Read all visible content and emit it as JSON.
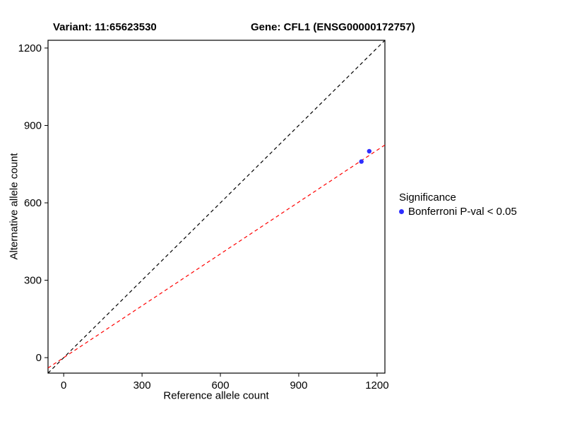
{
  "titles": {
    "variant": "Variant: 11:65623530",
    "gene": "Gene: CFL1 (ENSG00000172757)"
  },
  "chart_data": {
    "type": "scatter",
    "xlabel": "Reference allele count",
    "ylabel": "Alternative allele count",
    "xlim": [
      -60,
      1230
    ],
    "ylim": [
      -60,
      1230
    ],
    "xticks": [
      0,
      300,
      600,
      900,
      1200
    ],
    "yticks": [
      0,
      300,
      600,
      900,
      1200
    ],
    "grid": false,
    "panel_border_color": "#000000",
    "point_color": "#2e2eff",
    "points": [
      {
        "x": 1140,
        "y": 760
      },
      {
        "x": 1170,
        "y": 800
      }
    ],
    "lines": [
      {
        "name": "identity",
        "slope": 1,
        "intercept": 0,
        "color": "#000000",
        "dash": true
      },
      {
        "name": "regression",
        "slope": 0.67,
        "intercept": 0,
        "color": "#ff0000",
        "dash": true
      }
    ],
    "legend": {
      "title": "Significance",
      "position": "right",
      "items": [
        {
          "label": "Bonferroni P-val < 0.05",
          "color": "#2e2eff"
        }
      ]
    }
  }
}
